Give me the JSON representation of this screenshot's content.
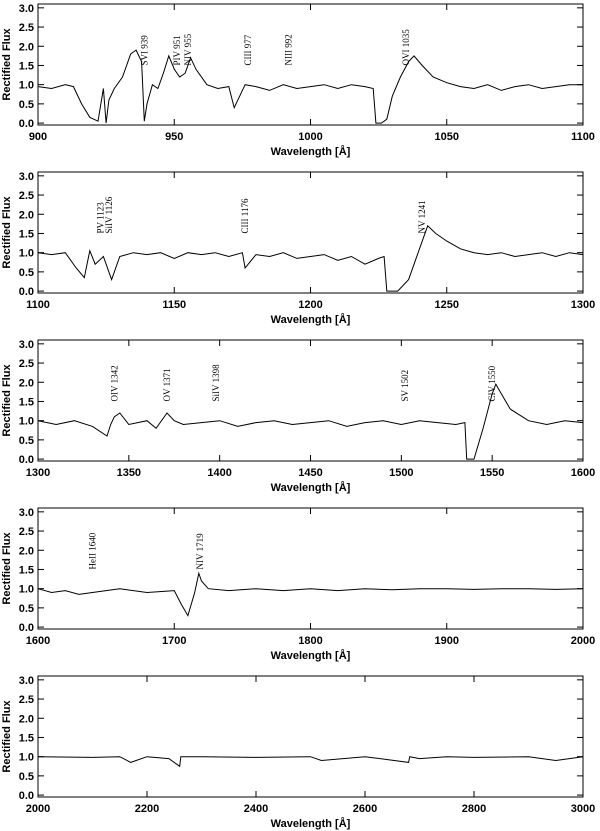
{
  "chart_data": [
    {
      "type": "line",
      "xlabel": "Wavelength [Å]",
      "ylabel": "Rectified Flux",
      "xlim": [
        900,
        1100
      ],
      "xticks": [
        900,
        950,
        1000,
        1050,
        1100
      ],
      "ylim": [
        -0.05,
        3.1
      ],
      "yticks": [
        {
          "value": 0,
          "label": "0.0"
        },
        0.5,
        {
          "value": 1,
          "label": "1.0"
        },
        1.5,
        {
          "value": 2,
          "label": "2.0"
        },
        2.5,
        {
          "value": 3,
          "label": "3.0"
        }
      ],
      "color": "#000000",
      "x": [
        900,
        905,
        910,
        913,
        916,
        919,
        922,
        924,
        925,
        926,
        928,
        931,
        934,
        936,
        938,
        939,
        940,
        942,
        944,
        946,
        948,
        950,
        952,
        954,
        956,
        958,
        962,
        966,
        970,
        972,
        976,
        980,
        985,
        990,
        995,
        1000,
        1005,
        1010,
        1015,
        1020,
        1023,
        1024,
        1026,
        1028,
        1030,
        1033,
        1036,
        1038,
        1041,
        1045,
        1050,
        1055,
        1060,
        1065,
        1070,
        1075,
        1080,
        1085,
        1090,
        1095,
        1100
      ],
      "values": [
        0.95,
        0.9,
        1.0,
        0.95,
        0.5,
        0.15,
        0.05,
        0.9,
        0.0,
        0.6,
        0.9,
        1.2,
        1.8,
        1.9,
        1.6,
        0.05,
        0.5,
        1.0,
        0.9,
        1.3,
        1.75,
        1.4,
        1.2,
        1.3,
        1.7,
        1.4,
        1.0,
        0.9,
        0.95,
        0.4,
        1.0,
        0.95,
        0.85,
        1.0,
        0.9,
        0.95,
        1.0,
        0.9,
        1.0,
        0.95,
        0.9,
        0.0,
        0.0,
        0.1,
        0.7,
        1.2,
        1.6,
        1.75,
        1.5,
        1.2,
        1.05,
        0.95,
        0.9,
        1.0,
        0.85,
        0.95,
        1.0,
        0.9,
        0.95,
        1.0,
        1.0
      ],
      "annotations": [
        {
          "text": "SVI 939",
          "x": 939
        },
        {
          "text": "PIV 951",
          "x": 951
        },
        {
          "text": "NIV 955",
          "x": 955
        },
        {
          "text": "CIII 977",
          "x": 977
        },
        {
          "text": "NIII 992",
          "x": 992
        },
        {
          "text": "OVI 1035",
          "x": 1035
        }
      ]
    },
    {
      "type": "line",
      "xlabel": "Wavelength [Å]",
      "ylabel": "Rectified Flux",
      "xlim": [
        1100,
        1300
      ],
      "xticks": [
        1100,
        1150,
        1200,
        1250,
        1300
      ],
      "ylim": [
        -0.05,
        3.1
      ],
      "yticks": [
        {
          "value": 0,
          "label": "0.0"
        },
        0.5,
        {
          "value": 1,
          "label": "1.0"
        },
        1.5,
        {
          "value": 2,
          "label": "2.0"
        },
        2.5,
        {
          "value": 3,
          "label": "3.0"
        }
      ],
      "color": "#000000",
      "x": [
        1100,
        1105,
        1110,
        1114,
        1117,
        1119,
        1121,
        1124,
        1127,
        1130,
        1135,
        1140,
        1145,
        1150,
        1155,
        1160,
        1165,
        1170,
        1175,
        1176,
        1180,
        1185,
        1190,
        1195,
        1200,
        1205,
        1210,
        1215,
        1220,
        1225,
        1227,
        1228,
        1232,
        1236,
        1240,
        1243,
        1246,
        1250,
        1255,
        1260,
        1265,
        1270,
        1275,
        1280,
        1285,
        1290,
        1295,
        1300
      ],
      "values": [
        1.0,
        0.95,
        1.0,
        0.6,
        0.35,
        1.05,
        0.7,
        0.9,
        0.3,
        0.9,
        1.0,
        0.95,
        1.0,
        0.85,
        1.0,
        0.95,
        1.0,
        0.9,
        1.0,
        0.6,
        0.95,
        0.9,
        1.0,
        0.85,
        0.9,
        0.95,
        0.8,
        0.9,
        0.7,
        0.85,
        0.9,
        0.0,
        0.0,
        0.3,
        1.1,
        1.7,
        1.5,
        1.3,
        1.1,
        1.0,
        0.95,
        1.0,
        0.9,
        0.95,
        1.0,
        0.9,
        1.0,
        0.95
      ],
      "annotations": [
        {
          "text": "PV 1123",
          "x": 1123
        },
        {
          "text": "SiIV 1126",
          "x": 1126
        },
        {
          "text": "CIII 1176",
          "x": 1176
        },
        {
          "text": "NV 1241",
          "x": 1241
        }
      ]
    },
    {
      "type": "line",
      "xlabel": "Wavelength [Å]",
      "ylabel": "Rectified Flux",
      "xlim": [
        1300,
        1600
      ],
      "xticks": [
        1300,
        1350,
        1400,
        1450,
        1500,
        1550,
        1600
      ],
      "ylim": [
        -0.05,
        3.1
      ],
      "yticks": [
        {
          "value": 0,
          "label": "0.0"
        },
        0.5,
        {
          "value": 1,
          "label": "1.0"
        },
        1.5,
        {
          "value": 2,
          "label": "2.0"
        },
        2.5,
        {
          "value": 3,
          "label": "3.0"
        }
      ],
      "color": "#000000",
      "x": [
        1300,
        1310,
        1320,
        1330,
        1338,
        1340,
        1342,
        1345,
        1350,
        1360,
        1365,
        1371,
        1375,
        1380,
        1390,
        1400,
        1410,
        1420,
        1430,
        1440,
        1450,
        1460,
        1470,
        1480,
        1490,
        1500,
        1510,
        1520,
        1530,
        1535,
        1536,
        1540,
        1545,
        1550,
        1552,
        1555,
        1560,
        1570,
        1580,
        1590,
        1600
      ],
      "values": [
        1.0,
        0.9,
        1.0,
        0.85,
        0.6,
        0.9,
        1.1,
        1.2,
        0.9,
        1.0,
        0.8,
        1.2,
        1.0,
        0.9,
        0.95,
        1.0,
        0.85,
        0.95,
        1.0,
        0.9,
        0.95,
        1.0,
        0.85,
        0.95,
        1.0,
        0.9,
        1.0,
        0.95,
        0.9,
        0.95,
        0.0,
        0.0,
        0.8,
        1.7,
        1.95,
        1.7,
        1.3,
        1.0,
        0.9,
        1.0,
        0.95
      ],
      "annotations": [
        {
          "text": "OIV 1342",
          "x": 1342
        },
        {
          "text": "OV 1371",
          "x": 1371
        },
        {
          "text": "SiIV 1398",
          "x": 1398
        },
        {
          "text": "SV 1502",
          "x": 1502
        },
        {
          "text": "CIV 1550",
          "x": 1550
        }
      ]
    },
    {
      "type": "line",
      "xlabel": "Wavelength [Å]",
      "ylabel": "Rectified Flux",
      "xlim": [
        1600,
        2000
      ],
      "xticks": [
        1600,
        1700,
        1800,
        1900,
        2000
      ],
      "ylim": [
        -0.05,
        3.1
      ],
      "yticks": [
        {
          "value": 0,
          "label": "0.0"
        },
        0.5,
        {
          "value": 1,
          "label": "1.0"
        },
        1.5,
        {
          "value": 2,
          "label": "2.0"
        },
        2.5,
        {
          "value": 3,
          "label": "3.0"
        }
      ],
      "color": "#000000",
      "x": [
        1600,
        1610,
        1620,
        1630,
        1640,
        1650,
        1660,
        1680,
        1700,
        1705,
        1710,
        1715,
        1718,
        1720,
        1725,
        1740,
        1760,
        1780,
        1800,
        1820,
        1840,
        1860,
        1880,
        1900,
        1920,
        1940,
        1960,
        1980,
        2000
      ],
      "values": [
        1.0,
        0.9,
        0.95,
        0.85,
        0.9,
        0.95,
        1.0,
        0.9,
        0.95,
        0.6,
        0.3,
        0.9,
        1.4,
        1.2,
        1.0,
        0.95,
        1.0,
        0.95,
        1.0,
        0.95,
        1.0,
        0.97,
        1.0,
        1.0,
        0.98,
        1.0,
        1.0,
        0.98,
        1.0
      ],
      "annotations": [
        {
          "text": "HeII 1640",
          "x": 1640
        },
        {
          "text": "NIV 1719",
          "x": 1719
        }
      ]
    },
    {
      "type": "line",
      "xlabel": "Wavelength [Å]",
      "ylabel": "Rectified Flux",
      "xlim": [
        2000,
        3000
      ],
      "xticks": [
        2000,
        2200,
        2400,
        2600,
        2800,
        3000
      ],
      "ylim": [
        -0.05,
        3.1
      ],
      "yticks": [
        {
          "value": 0,
          "label": "0.0"
        },
        0.5,
        {
          "value": 1,
          "label": "1.0"
        },
        1.5,
        {
          "value": 2,
          "label": "2.0"
        },
        2.5,
        {
          "value": 3,
          "label": "3.0"
        }
      ],
      "color": "#000000",
      "x": [
        2000,
        2100,
        2150,
        2170,
        2200,
        2240,
        2260,
        2262,
        2300,
        2400,
        2500,
        2520,
        2600,
        2680,
        2682,
        2700,
        2750,
        2800,
        2900,
        2950,
        3000
      ],
      "values": [
        1.0,
        0.98,
        1.0,
        0.85,
        1.0,
        0.95,
        0.75,
        1.0,
        1.0,
        0.98,
        1.0,
        0.9,
        1.0,
        0.85,
        1.0,
        0.95,
        1.0,
        0.98,
        1.0,
        0.9,
        1.0
      ],
      "annotations": []
    }
  ]
}
